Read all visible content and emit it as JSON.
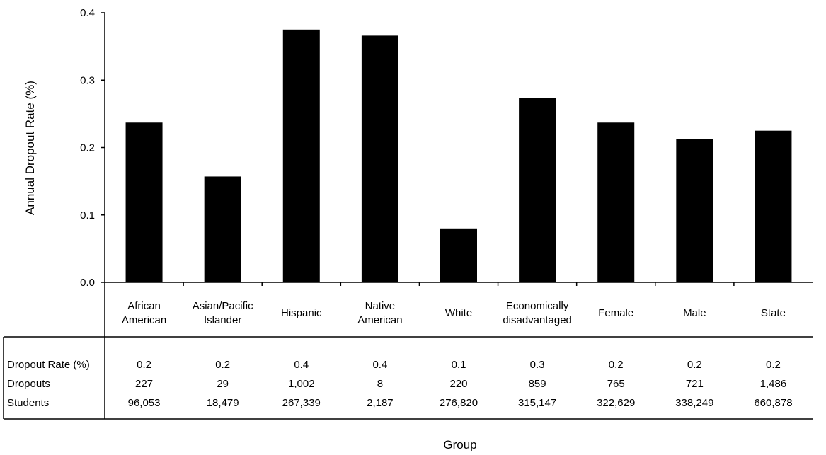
{
  "chart_data": {
    "type": "bar",
    "title": "",
    "xlabel": "Group",
    "ylabel": "Annual Dropout Rate (%)",
    "ylim": [
      0,
      0.4
    ],
    "yticks": [
      "0.0",
      "0.1",
      "0.2",
      "0.3",
      "0.4"
    ],
    "grid": false,
    "bar_color": "#000000",
    "categories": [
      [
        "African",
        "American"
      ],
      [
        "Asian/Pacific",
        "Islander"
      ],
      [
        "Hispanic"
      ],
      [
        "Native",
        "American"
      ],
      [
        "White"
      ],
      [
        "Economically",
        "disadvantaged"
      ],
      [
        "Female"
      ],
      [
        "Male"
      ],
      [
        "State"
      ]
    ],
    "values": [
      0.237,
      0.157,
      0.375,
      0.366,
      0.08,
      0.273,
      0.237,
      0.213,
      0.225
    ],
    "table": {
      "rows": [
        {
          "label": "Dropout Rate (%)",
          "values": [
            "0.2",
            "0.2",
            "0.4",
            "0.4",
            "0.1",
            "0.3",
            "0.2",
            "0.2",
            "0.2"
          ]
        },
        {
          "label": "Dropouts",
          "values": [
            "227",
            "29",
            "1,002",
            "8",
            "220",
            "859",
            "765",
            "721",
            "1,486"
          ]
        },
        {
          "label": "Students",
          "values": [
            "96,053",
            "18,479",
            "267,339",
            "2,187",
            "276,820",
            "315,147",
            "322,629",
            "338,249",
            "660,878"
          ]
        }
      ]
    }
  }
}
